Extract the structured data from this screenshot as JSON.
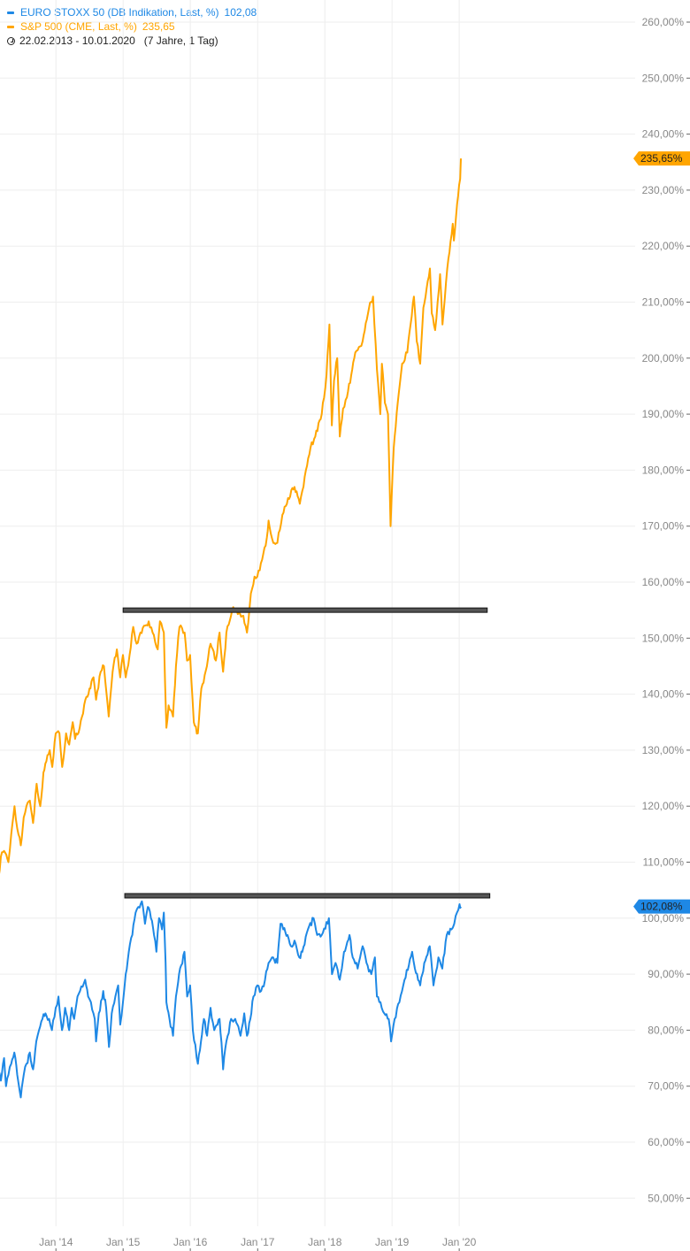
{
  "legend": {
    "series1_label": "EURO STOXX 50 (DB Indikation, Last, %)",
    "series1_value": "102,08",
    "series2_label": "S&P 500 (CME, Last, %)",
    "series2_value": "235,65",
    "date_range": "22.02.2013 - 10.01.2020",
    "span": "(7 Jahre, 1 Tag)",
    "clock_icon": "clock-icon"
  },
  "colors": {
    "euro_stoxx": "#1e88e5",
    "sp500": "#ffa500",
    "grid": "#eeeeee",
    "axis_text": "#888888",
    "drawn_line": "#111111",
    "drawn_line_fill": "#555555"
  },
  "chart_data": {
    "type": "line",
    "title": "",
    "xlabel": "",
    "ylabel": "",
    "ylim": [
      45,
      262
    ],
    "yticks": [
      50,
      60,
      70,
      80,
      90,
      100,
      110,
      120,
      130,
      140,
      150,
      160,
      170,
      180,
      190,
      200,
      210,
      220,
      230,
      240,
      250,
      260
    ],
    "ytick_labels": [
      "50,00%",
      "60,00%",
      "70,00%",
      "80,00%",
      "90,00%",
      "100,00%",
      "110,00%",
      "120,00%",
      "130,00%",
      "140,00%",
      "150,00%",
      "160,00%",
      "170,00%",
      "180,00%",
      "190,00%",
      "200,00%",
      "210,00%",
      "220,00%",
      "230,00%",
      "240,00%",
      "250,00%",
      "260,00%"
    ],
    "xlim": [
      "2013-02-22",
      "2020-01-10"
    ],
    "xticks": [
      "2014-01-01",
      "2015-01-01",
      "2016-01-01",
      "2017-01-01",
      "2018-01-01",
      "2019-01-01",
      "2020-01-01"
    ],
    "xtick_labels": [
      "Jan '14",
      "Jan '15",
      "Jan '16",
      "Jan '17",
      "Jan '18",
      "Jan '19",
      "Jan '20"
    ],
    "grid": true,
    "legend_position": "top-left",
    "series": [
      {
        "name": "EURO STOXX 50 (DB Indikation, Last, %)",
        "color": "#1e88e5",
        "last_value_label": "102,08%",
        "last_value": 102.08,
        "points": [
          [
            "2013-02-22",
            73
          ],
          [
            "2013-03-08",
            71
          ],
          [
            "2013-03-25",
            75
          ],
          [
            "2013-04-05",
            70
          ],
          [
            "2013-04-18",
            72
          ],
          [
            "2013-05-03",
            74
          ],
          [
            "2013-05-20",
            76
          ],
          [
            "2013-06-05",
            72
          ],
          [
            "2013-06-24",
            68
          ],
          [
            "2013-07-10",
            72
          ],
          [
            "2013-07-25",
            74
          ],
          [
            "2013-08-12",
            76
          ],
          [
            "2013-08-30",
            73
          ],
          [
            "2013-09-16",
            78
          ],
          [
            "2013-10-01",
            80
          ],
          [
            "2013-10-20",
            82
          ],
          [
            "2013-11-05",
            83
          ],
          [
            "2013-11-25",
            82
          ],
          [
            "2013-12-10",
            80
          ],
          [
            "2013-12-31",
            84
          ],
          [
            "2014-01-15",
            86
          ],
          [
            "2014-02-03",
            80
          ],
          [
            "2014-02-20",
            84
          ],
          [
            "2014-03-14",
            80
          ],
          [
            "2014-03-28",
            84
          ],
          [
            "2014-04-10",
            82
          ],
          [
            "2014-04-28",
            86
          ],
          [
            "2014-05-12",
            87
          ],
          [
            "2014-06-09",
            89
          ],
          [
            "2014-06-25",
            86
          ],
          [
            "2014-07-10",
            85
          ],
          [
            "2014-07-31",
            82
          ],
          [
            "2014-08-07",
            78
          ],
          [
            "2014-08-22",
            83
          ],
          [
            "2014-09-15",
            87
          ],
          [
            "2014-10-01",
            84
          ],
          [
            "2014-10-16",
            77
          ],
          [
            "2014-10-31",
            83
          ],
          [
            "2014-11-20",
            86
          ],
          [
            "2014-12-05",
            88
          ],
          [
            "2014-12-16",
            81
          ],
          [
            "2014-12-31",
            85
          ],
          [
            "2015-01-15",
            90
          ],
          [
            "2015-02-01",
            94
          ],
          [
            "2015-02-20",
            97
          ],
          [
            "2015-03-10",
            101
          ],
          [
            "2015-03-25",
            102
          ],
          [
            "2015-04-13",
            103
          ],
          [
            "2015-04-30",
            99
          ],
          [
            "2015-05-15",
            102
          ],
          [
            "2015-06-01",
            100
          ],
          [
            "2015-06-18",
            97
          ],
          [
            "2015-07-01",
            94
          ],
          [
            "2015-07-15",
            100
          ],
          [
            "2015-07-31",
            98
          ],
          [
            "2015-08-10",
            101
          ],
          [
            "2015-08-20",
            92
          ],
          [
            "2015-08-24",
            85
          ],
          [
            "2015-09-10",
            82
          ],
          [
            "2015-09-29",
            79
          ],
          [
            "2015-10-15",
            86
          ],
          [
            "2015-11-01",
            90
          ],
          [
            "2015-11-30",
            94
          ],
          [
            "2015-12-15",
            86
          ],
          [
            "2015-12-31",
            88
          ],
          [
            "2016-01-15",
            80
          ],
          [
            "2016-02-11",
            74
          ],
          [
            "2016-02-28",
            78
          ],
          [
            "2016-03-15",
            82
          ],
          [
            "2016-04-01",
            79
          ],
          [
            "2016-04-20",
            84
          ],
          [
            "2016-05-10",
            80
          ],
          [
            "2016-06-08",
            82
          ],
          [
            "2016-06-24",
            75
          ],
          [
            "2016-06-27",
            73
          ],
          [
            "2016-07-15",
            78
          ],
          [
            "2016-08-10",
            82
          ],
          [
            "2016-09-01",
            82
          ],
          [
            "2016-09-30",
            79
          ],
          [
            "2016-10-20",
            83
          ],
          [
            "2016-11-04",
            79
          ],
          [
            "2016-11-22",
            82
          ],
          [
            "2016-12-09",
            86
          ],
          [
            "2016-12-30",
            88
          ],
          [
            "2017-01-20",
            87
          ],
          [
            "2017-02-10",
            89
          ],
          [
            "2017-03-01",
            92
          ],
          [
            "2017-03-20",
            93
          ],
          [
            "2017-04-18",
            92
          ],
          [
            "2017-05-05",
            99
          ],
          [
            "2017-05-20",
            98
          ],
          [
            "2017-06-12",
            97
          ],
          [
            "2017-07-01",
            95
          ],
          [
            "2017-07-20",
            96
          ],
          [
            "2017-08-15",
            93
          ],
          [
            "2017-09-01",
            94
          ],
          [
            "2017-10-01",
            98
          ],
          [
            "2017-11-01",
            100
          ],
          [
            "2017-11-20",
            97
          ],
          [
            "2017-12-15",
            97
          ],
          [
            "2018-01-23",
            100
          ],
          [
            "2018-02-09",
            90
          ],
          [
            "2018-02-28",
            92
          ],
          [
            "2018-03-23",
            89
          ],
          [
            "2018-04-15",
            94
          ],
          [
            "2018-05-15",
            97
          ],
          [
            "2018-06-01",
            93
          ],
          [
            "2018-06-28",
            91
          ],
          [
            "2018-07-25",
            95
          ],
          [
            "2018-08-15",
            92
          ],
          [
            "2018-09-10",
            90
          ],
          [
            "2018-09-30",
            93
          ],
          [
            "2018-10-11",
            86
          ],
          [
            "2018-10-30",
            85
          ],
          [
            "2018-11-20",
            83
          ],
          [
            "2018-12-14",
            82
          ],
          [
            "2018-12-27",
            78
          ],
          [
            "2019-01-15",
            82
          ],
          [
            "2019-02-10",
            85
          ],
          [
            "2019-03-10",
            89
          ],
          [
            "2019-04-20",
            94
          ],
          [
            "2019-05-05",
            91
          ],
          [
            "2019-06-03",
            88
          ],
          [
            "2019-06-25",
            92
          ],
          [
            "2019-07-25",
            95
          ],
          [
            "2019-08-14",
            88
          ],
          [
            "2019-09-10",
            93
          ],
          [
            "2019-10-01",
            91
          ],
          [
            "2019-10-25",
            97
          ],
          [
            "2019-11-20",
            98
          ],
          [
            "2019-12-05",
            99
          ],
          [
            "2019-12-20",
            101
          ],
          [
            "2020-01-03",
            102.5
          ],
          [
            "2020-01-10",
            102.08
          ]
        ]
      },
      {
        "name": "S&P 500 (CME, Last, %)",
        "color": "#ffa500",
        "last_value_label": "235,65%",
        "last_value": 235.65,
        "points": [
          [
            "2013-02-22",
            107
          ],
          [
            "2013-03-08",
            111
          ],
          [
            "2013-03-25",
            112
          ],
          [
            "2013-04-18",
            110
          ],
          [
            "2013-05-03",
            115
          ],
          [
            "2013-05-21",
            120
          ],
          [
            "2013-06-05",
            116
          ],
          [
            "2013-06-24",
            113
          ],
          [
            "2013-07-10",
            118
          ],
          [
            "2013-07-25",
            120
          ],
          [
            "2013-08-12",
            121
          ],
          [
            "2013-08-30",
            117
          ],
          [
            "2013-09-18",
            124
          ],
          [
            "2013-10-08",
            120
          ],
          [
            "2013-10-25",
            126
          ],
          [
            "2013-11-10",
            128
          ],
          [
            "2013-11-28",
            130
          ],
          [
            "2013-12-12",
            127
          ],
          [
            "2013-12-31",
            133
          ],
          [
            "2014-01-20",
            133
          ],
          [
            "2014-02-04",
            127
          ],
          [
            "2014-02-25",
            133
          ],
          [
            "2014-03-14",
            131
          ],
          [
            "2014-04-02",
            135
          ],
          [
            "2014-04-15",
            132
          ],
          [
            "2014-05-10",
            134
          ],
          [
            "2014-06-10",
            139
          ],
          [
            "2014-07-02",
            141
          ],
          [
            "2014-07-24",
            143
          ],
          [
            "2014-08-07",
            139
          ],
          [
            "2014-09-01",
            144
          ],
          [
            "2014-09-19",
            145
          ],
          [
            "2014-10-03",
            140
          ],
          [
            "2014-10-15",
            136
          ],
          [
            "2014-11-05",
            144
          ],
          [
            "2014-11-28",
            148
          ],
          [
            "2014-12-16",
            143
          ],
          [
            "2014-12-31",
            147
          ],
          [
            "2015-01-15",
            143
          ],
          [
            "2015-02-05",
            147
          ],
          [
            "2015-02-25",
            152
          ],
          [
            "2015-03-15",
            149
          ],
          [
            "2015-04-05",
            151
          ],
          [
            "2015-05-20",
            153
          ],
          [
            "2015-06-10",
            151
          ],
          [
            "2015-07-08",
            148
          ],
          [
            "2015-07-20",
            153
          ],
          [
            "2015-08-10",
            151
          ],
          [
            "2015-08-24",
            134
          ],
          [
            "2015-09-05",
            138
          ],
          [
            "2015-09-29",
            136
          ],
          [
            "2015-10-15",
            145
          ],
          [
            "2015-11-03",
            152
          ],
          [
            "2015-12-01",
            151
          ],
          [
            "2015-12-14",
            146
          ],
          [
            "2015-12-31",
            147
          ],
          [
            "2016-01-20",
            135
          ],
          [
            "2016-02-11",
            133
          ],
          [
            "2016-03-01",
            141
          ],
          [
            "2016-03-31",
            145
          ],
          [
            "2016-04-20",
            149
          ],
          [
            "2016-05-19",
            146
          ],
          [
            "2016-06-08",
            151
          ],
          [
            "2016-06-27",
            144
          ],
          [
            "2016-07-15",
            151
          ],
          [
            "2016-08-15",
            155
          ],
          [
            "2016-09-09",
            155
          ],
          [
            "2016-10-15",
            154
          ],
          [
            "2016-11-04",
            151
          ],
          [
            "2016-11-25",
            158
          ],
          [
            "2016-12-15",
            161
          ],
          [
            "2016-12-30",
            161
          ],
          [
            "2017-01-25",
            164
          ],
          [
            "2017-02-20",
            168
          ],
          [
            "2017-03-01",
            171
          ],
          [
            "2017-03-27",
            167
          ],
          [
            "2017-04-18",
            167
          ],
          [
            "2017-05-15",
            172
          ],
          [
            "2017-06-15",
            175
          ],
          [
            "2017-07-20",
            177
          ],
          [
            "2017-08-18",
            174
          ],
          [
            "2017-09-20",
            180
          ],
          [
            "2017-10-15",
            184
          ],
          [
            "2017-11-10",
            186
          ],
          [
            "2017-12-15",
            190
          ],
          [
            "2018-01-10",
            197
          ],
          [
            "2018-01-26",
            206
          ],
          [
            "2018-02-08",
            188
          ],
          [
            "2018-02-20",
            196
          ],
          [
            "2018-03-09",
            200
          ],
          [
            "2018-03-23",
            186
          ],
          [
            "2018-04-10",
            191
          ],
          [
            "2018-05-01",
            193
          ],
          [
            "2018-05-30",
            198
          ],
          [
            "2018-06-15",
            201
          ],
          [
            "2018-07-25",
            203
          ],
          [
            "2018-08-29",
            209
          ],
          [
            "2018-09-20",
            211
          ],
          [
            "2018-10-11",
            198
          ],
          [
            "2018-10-29",
            190
          ],
          [
            "2018-11-07",
            199
          ],
          [
            "2018-11-23",
            192
          ],
          [
            "2018-12-10",
            190
          ],
          [
            "2018-12-24",
            170
          ],
          [
            "2019-01-10",
            184
          ],
          [
            "2019-02-01",
            192
          ],
          [
            "2019-02-25",
            199
          ],
          [
            "2019-03-25",
            201
          ],
          [
            "2019-04-30",
            211
          ],
          [
            "2019-05-15",
            203
          ],
          [
            "2019-06-03",
            199
          ],
          [
            "2019-06-20",
            209
          ],
          [
            "2019-07-26",
            216
          ],
          [
            "2019-08-05",
            208
          ],
          [
            "2019-08-23",
            205
          ],
          [
            "2019-09-19",
            215
          ],
          [
            "2019-10-02",
            206
          ],
          [
            "2019-10-28",
            216
          ],
          [
            "2019-11-27",
            224
          ],
          [
            "2019-12-03",
            221
          ],
          [
            "2019-12-26",
            229
          ],
          [
            "2020-01-06",
            232
          ],
          [
            "2020-01-10",
            235.65
          ]
        ]
      }
    ],
    "annotations": [
      {
        "type": "horizontal_line",
        "y": 155,
        "x_from": "2015-01-01",
        "x_to": "2020-06-01"
      },
      {
        "type": "horizontal_line",
        "y": 104,
        "x_from": "2015-01-10",
        "x_to": "2020-06-15"
      }
    ]
  }
}
